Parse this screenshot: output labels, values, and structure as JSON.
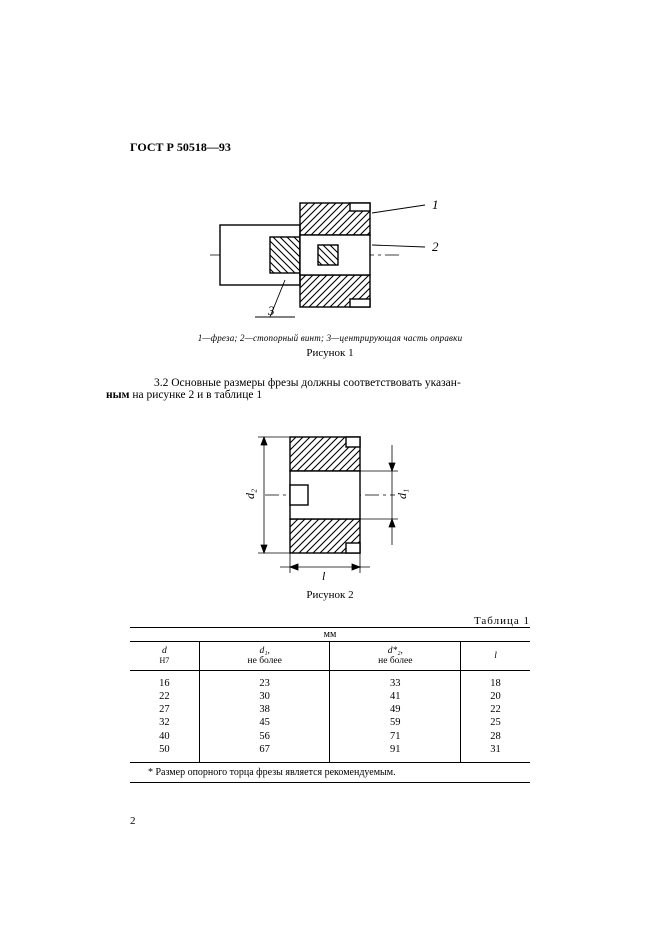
{
  "header": {
    "standard": "ГОСТ Р 50518—93"
  },
  "figure1": {
    "caption_parts": "1—фреза; 2—стопорный винт; 3—центрирующая часть оправки",
    "label": "Рисунок 1",
    "callouts": {
      "one": "1",
      "two": "2",
      "three": "3"
    },
    "hatch_color": "#000000",
    "line_color": "#000000",
    "background": "#ffffff"
  },
  "paragraph": {
    "section": "3.2",
    "text_prefix": "Основные размеры фрезы должны соответствовать указан-",
    "text_bold_line2_prefix": "ным",
    "text_line2_rest": " на рисунке 2 и в таблице 1"
  },
  "figure2": {
    "label": "Рисунок 2",
    "dim_labels": {
      "d1": "d₁",
      "d2": "d₂",
      "l": "l"
    },
    "hatch_color": "#000000",
    "line_color": "#000000",
    "background": "#ffffff"
  },
  "table": {
    "title": "Таблица 1",
    "unit_row": "мм",
    "headers": {
      "c1_line1": "d",
      "c1_line2": "H7",
      "c2_line1": "d₁,",
      "c2_line2": "не более",
      "c3_line1": "d*₂,",
      "c3_line2": "не более",
      "c4": "l"
    },
    "rows": [
      {
        "d": "16",
        "d1": "23",
        "d2": "33",
        "l": "18"
      },
      {
        "d": "22",
        "d1": "30",
        "d2": "41",
        "l": "20"
      },
      {
        "d": "27",
        "d1": "38",
        "d2": "49",
        "l": "22"
      },
      {
        "d": "32",
        "d1": "45",
        "d2": "59",
        "l": "25"
      },
      {
        "d": "40",
        "d1": "56",
        "d2": "71",
        "l": "28"
      },
      {
        "d": "50",
        "d1": "67",
        "d2": "91",
        "l": "31"
      }
    ],
    "footnote": "* Размер опорного торца фрезы является рекомендуемым."
  },
  "page_number": "2"
}
